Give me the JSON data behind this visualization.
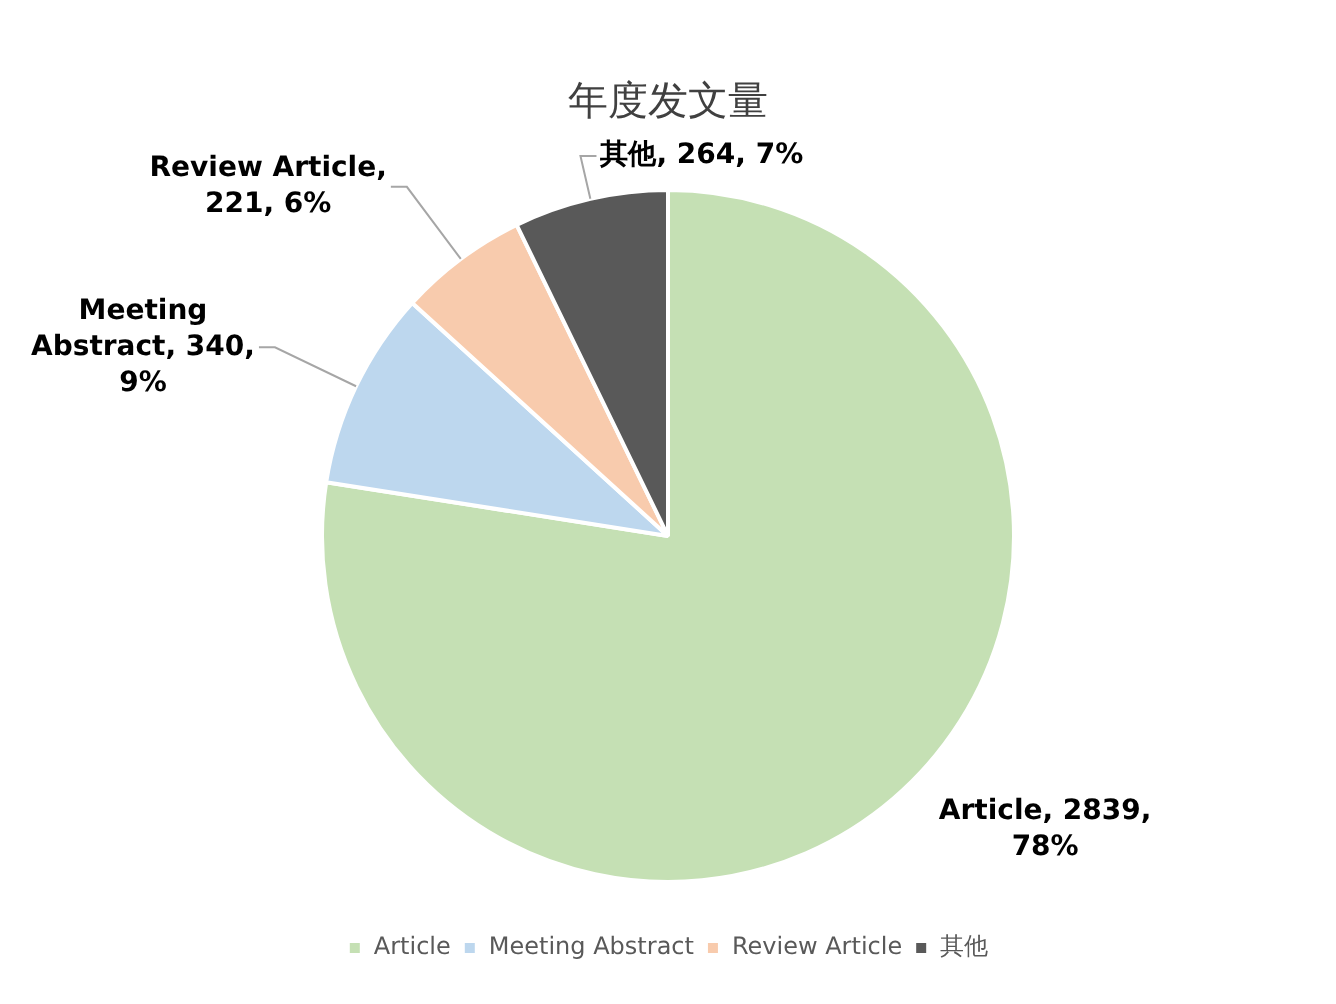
{
  "chart_data": {
    "type": "pie",
    "title": "年度发文量",
    "categories": [
      "Article",
      "Meeting Abstract",
      "Review Article",
      "其他"
    ],
    "values": [
      2839,
      340,
      221,
      264
    ],
    "colors": [
      "#c5e0b4",
      "#bdd7ee",
      "#f8cbad",
      "#595959"
    ],
    "value_labels": [
      "Article, 2839, 78%",
      "Meeting Abstract, 340, 9%",
      "Review Article, 221, 6%",
      "其他, 264, 7%"
    ],
    "legend": "bottom"
  }
}
